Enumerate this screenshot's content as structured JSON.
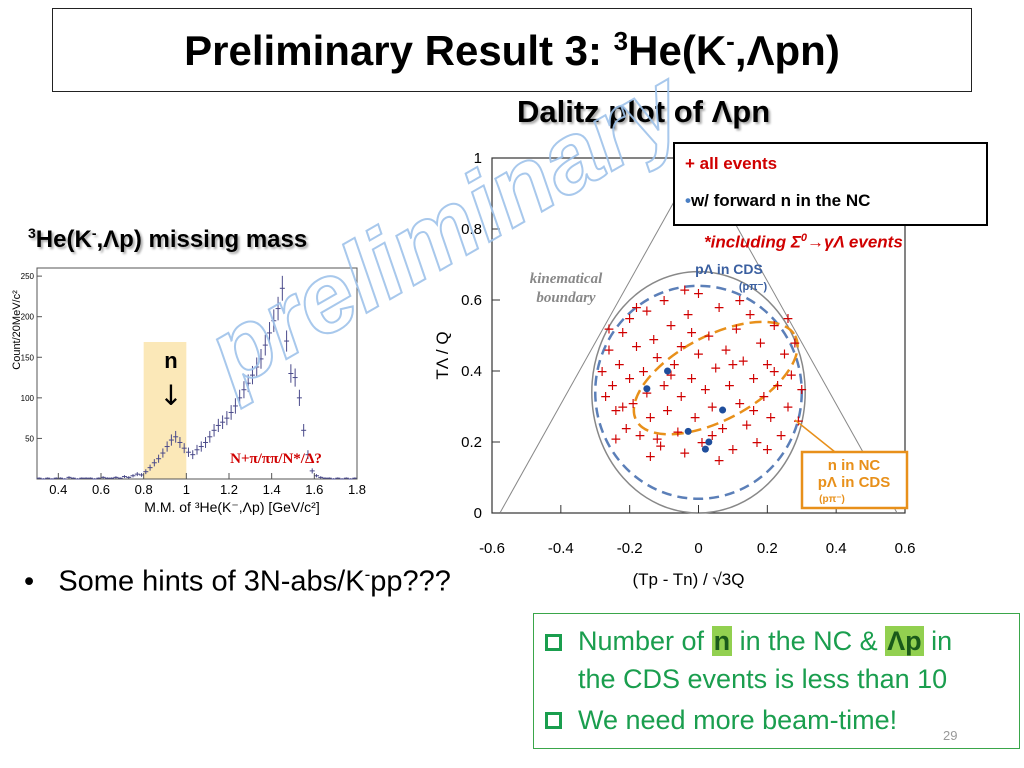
{
  "title": {
    "prefix": "Preliminary Result 3: ",
    "sup": "3",
    "rest_a": "He(K",
    "sup2": "-",
    "rest_b": ",Λpn)"
  },
  "dalitz_heading": "Dalitz plot of Λpn",
  "mm_heading": {
    "sup": "3",
    "text_a": "He(K",
    "sup2": "-",
    "text_b": ",Λp) missing mass"
  },
  "legend": {
    "line1": "+   all events",
    "line2": "•w/ forward n in the NC",
    "note_a": "*including Σ",
    "note_sup": "0",
    "note_b": "→γΛ events"
  },
  "bullet": {
    "text_a": "Some hints of 3N-abs/K",
    "sup": "-",
    "text_b": "pp???"
  },
  "green_box": {
    "line1_a": "Number of ",
    "line1_n": "n",
    "line1_b": " in the NC & ",
    "line1_lp": "Λp",
    "line1_c": " in",
    "line2": "the CDS events is less than 10",
    "line3": "We need more beam-time!"
  },
  "page_number": "29",
  "watermark": "preliminary",
  "colors": {
    "red": "#d00000",
    "blue_points": "#1f4e9c",
    "orange": "#e8901a",
    "green": "#1a9e4e",
    "highlight": "#fbe8b8",
    "ellipse_blue": "#5b7fb8"
  },
  "chart_data": [
    {
      "type": "scatter",
      "title": "",
      "xlabel": "(Tp - Tn) / √3Q",
      "ylabel": "TΛ / Q",
      "xlim": [
        -0.6,
        0.6
      ],
      "ylim": [
        0,
        1
      ],
      "x_ticks": [
        "-0.6",
        "-0.4",
        "-0.2",
        "0",
        "0.2",
        "0.4",
        "0.6"
      ],
      "y_ticks": [
        "0",
        "0.2",
        "0.4",
        "0.6",
        "0.8",
        "1"
      ],
      "series": [
        {
          "name": "all events",
          "marker": "+",
          "color": "#d00000",
          "points": [
            [
              -0.28,
              0.4
            ],
            [
              -0.27,
              0.33
            ],
            [
              -0.26,
              0.46
            ],
            [
              -0.25,
              0.36
            ],
            [
              -0.24,
              0.29
            ],
            [
              -0.23,
              0.42
            ],
            [
              -0.22,
              0.51
            ],
            [
              -0.21,
              0.24
            ],
            [
              -0.2,
              0.38
            ],
            [
              -0.2,
              0.55
            ],
            [
              -0.19,
              0.31
            ],
            [
              -0.18,
              0.47
            ],
            [
              -0.17,
              0.22
            ],
            [
              -0.16,
              0.4
            ],
            [
              -0.15,
              0.57
            ],
            [
              -0.15,
              0.34
            ],
            [
              -0.14,
              0.27
            ],
            [
              -0.13,
              0.49
            ],
            [
              -0.12,
              0.44
            ],
            [
              -0.11,
              0.19
            ],
            [
              -0.1,
              0.36
            ],
            [
              -0.1,
              0.6
            ],
            [
              -0.09,
              0.29
            ],
            [
              -0.08,
              0.53
            ],
            [
              -0.07,
              0.42
            ],
            [
              -0.06,
              0.23
            ],
            [
              -0.05,
              0.47
            ],
            [
              -0.05,
              0.33
            ],
            [
              -0.04,
              0.17
            ],
            [
              -0.03,
              0.56
            ],
            [
              -0.02,
              0.38
            ],
            [
              -0.01,
              0.27
            ],
            [
              0.0,
              0.45
            ],
            [
              0.0,
              0.62
            ],
            [
              0.01,
              0.2
            ],
            [
              0.02,
              0.35
            ],
            [
              0.03,
              0.5
            ],
            [
              0.04,
              0.3
            ],
            [
              0.05,
              0.41
            ],
            [
              0.06,
              0.58
            ],
            [
              0.07,
              0.24
            ],
            [
              0.08,
              0.46
            ],
            [
              0.09,
              0.36
            ],
            [
              0.1,
              0.18
            ],
            [
              0.11,
              0.52
            ],
            [
              0.12,
              0.31
            ],
            [
              0.13,
              0.43
            ],
            [
              0.14,
              0.25
            ],
            [
              0.15,
              0.56
            ],
            [
              0.16,
              0.38
            ],
            [
              0.17,
              0.2
            ],
            [
              0.18,
              0.48
            ],
            [
              0.19,
              0.33
            ],
            [
              0.2,
              0.42
            ],
            [
              0.21,
              0.27
            ],
            [
              0.22,
              0.53
            ],
            [
              0.23,
              0.36
            ],
            [
              0.24,
              0.22
            ],
            [
              0.25,
              0.45
            ],
            [
              0.26,
              0.3
            ],
            [
              0.27,
              0.39
            ],
            [
              0.28,
              0.48
            ],
            [
              0.29,
              0.26
            ],
            [
              0.3,
              0.35
            ],
            [
              -0.22,
              0.3
            ],
            [
              -0.18,
              0.58
            ],
            [
              -0.12,
              0.21
            ],
            [
              -0.08,
              0.39
            ],
            [
              -0.02,
              0.51
            ],
            [
              0.04,
              0.22
            ],
            [
              0.1,
              0.42
            ],
            [
              0.16,
              0.29
            ],
            [
              0.22,
              0.4
            ],
            [
              -0.26,
              0.52
            ],
            [
              -0.24,
              0.21
            ],
            [
              0.26,
              0.55
            ],
            [
              0.2,
              0.18
            ],
            [
              -0.14,
              0.16
            ],
            [
              0.06,
              0.15
            ],
            [
              -0.04,
              0.63
            ],
            [
              0.12,
              0.6
            ]
          ]
        },
        {
          "name": "w/ forward n in the NC",
          "marker": "dot",
          "color": "#1f4e9c",
          "points": [
            [
              -0.15,
              0.35
            ],
            [
              -0.09,
              0.4
            ],
            [
              -0.03,
              0.23
            ],
            [
              0.02,
              0.18
            ],
            [
              0.03,
              0.2
            ],
            [
              0.07,
              0.29
            ]
          ]
        }
      ],
      "annotations": [
        "kinematical boundary",
        "pΛ in CDS (pπ⁻)",
        "n in NC",
        "pΛ in CDS (pπ⁻)"
      ]
    },
    {
      "type": "bar",
      "title": "",
      "xlabel": "M.M. of ³He(K⁻,Λp) [GeV/c²]",
      "ylabel": "Count/20MeV/c²",
      "xlim": [
        0.3,
        1.8
      ],
      "ylim": [
        0,
        260
      ],
      "x_ticks": [
        "0.4",
        "0.6",
        "0.8",
        "1",
        "1.2",
        "1.4",
        "1.6",
        "1.8"
      ],
      "y_ticks": [
        "50",
        "100",
        "150",
        "200",
        "250"
      ],
      "categories": [
        0.31,
        0.33,
        0.35,
        0.37,
        0.39,
        0.41,
        0.43,
        0.45,
        0.47,
        0.49,
        0.51,
        0.53,
        0.55,
        0.57,
        0.59,
        0.61,
        0.63,
        0.65,
        0.67,
        0.69,
        0.71,
        0.73,
        0.75,
        0.77,
        0.79,
        0.81,
        0.83,
        0.85,
        0.87,
        0.89,
        0.91,
        0.93,
        0.95,
        0.97,
        0.99,
        1.01,
        1.03,
        1.05,
        1.07,
        1.09,
        1.11,
        1.13,
        1.15,
        1.17,
        1.19,
        1.21,
        1.23,
        1.25,
        1.27,
        1.29,
        1.31,
        1.33,
        1.35,
        1.37,
        1.39,
        1.41,
        1.43,
        1.45,
        1.47,
        1.49,
        1.51,
        1.53,
        1.55,
        1.57,
        1.59,
        1.61,
        1.63,
        1.65,
        1.67,
        1.69,
        1.71,
        1.73,
        1.75,
        1.77,
        1.79
      ],
      "values": [
        1,
        0,
        1,
        0,
        1,
        1,
        0,
        2,
        1,
        0,
        1,
        1,
        1,
        0,
        1,
        2,
        1,
        1,
        2,
        1,
        3,
        2,
        4,
        6,
        5,
        9,
        14,
        20,
        25,
        32,
        40,
        48,
        52,
        45,
        38,
        33,
        30,
        36,
        40,
        45,
        52,
        60,
        66,
        70,
        75,
        82,
        90,
        100,
        110,
        118,
        128,
        138,
        148,
        165,
        180,
        195,
        210,
        235,
        170,
        130,
        125,
        100,
        60,
        30,
        10,
        4,
        2,
        1,
        1,
        0,
        1,
        0,
        1,
        0,
        1
      ],
      "annotations": [
        "n",
        "N+π/ππ/N*/Δ?"
      ],
      "highlight_range": [
        0.8,
        1.0
      ]
    }
  ]
}
